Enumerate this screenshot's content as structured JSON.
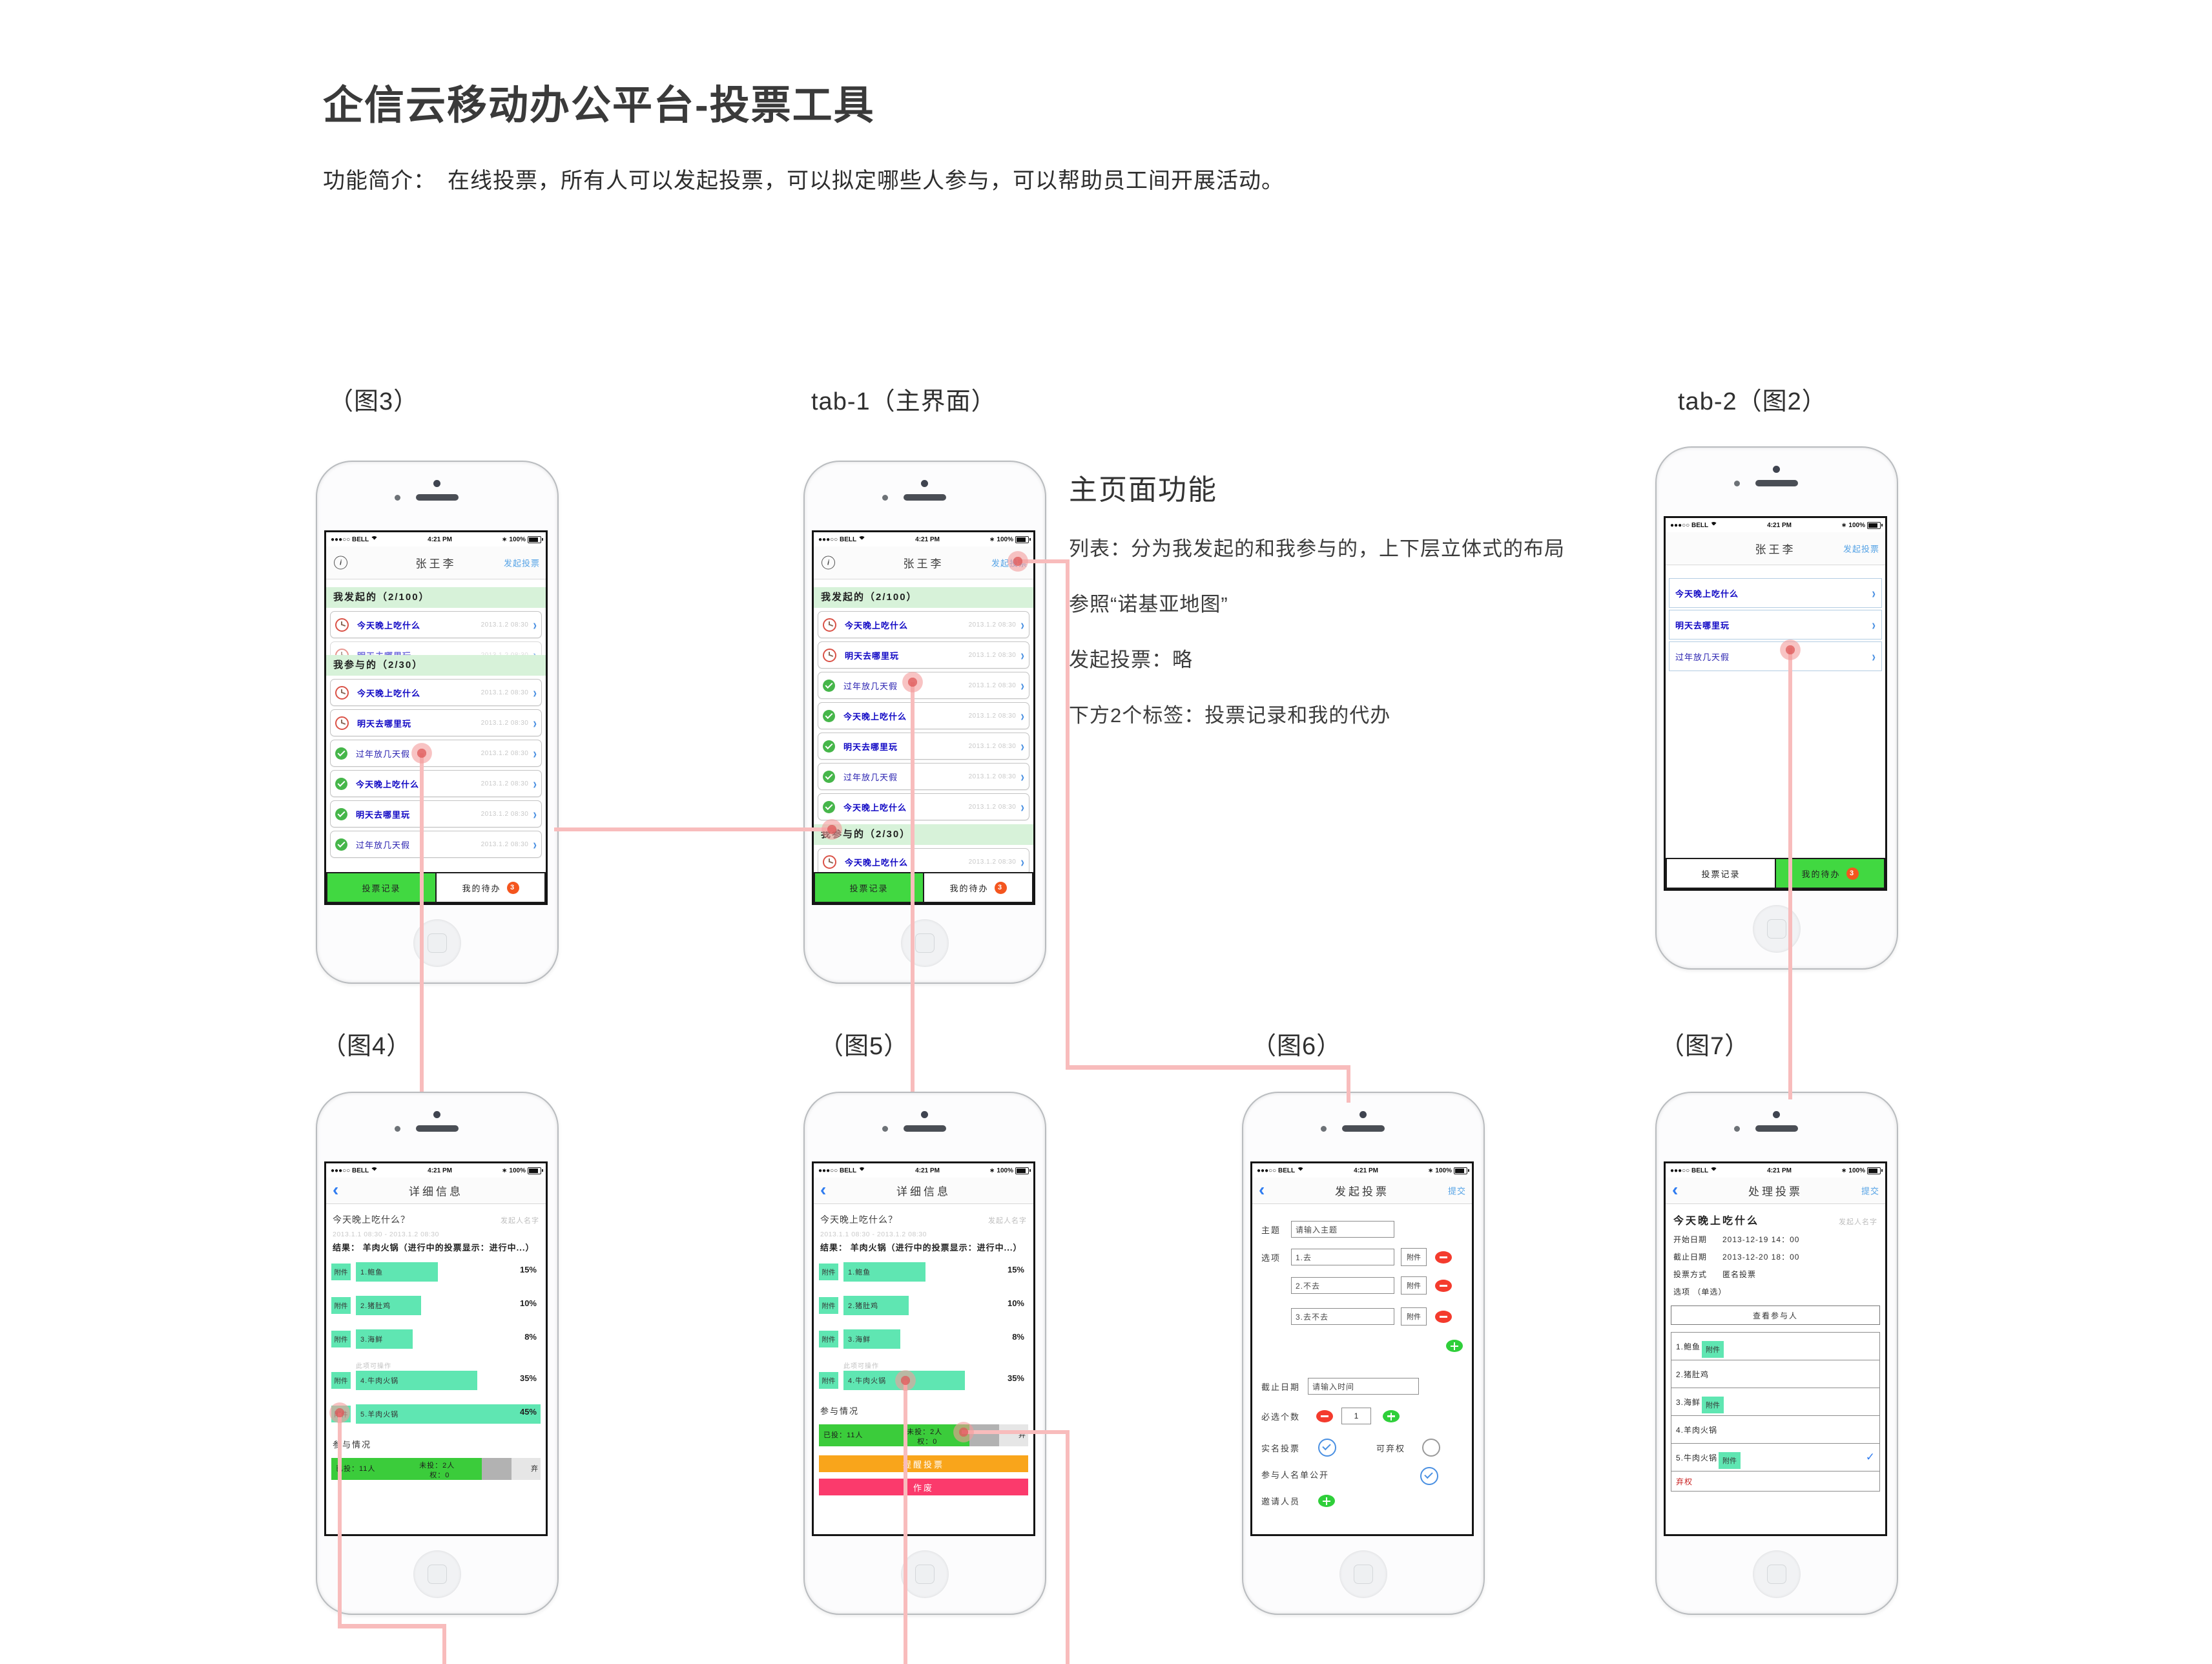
{
  "page": {
    "title": "企信云移动办公平台-投票工具",
    "subtitle": "功能简介：　在线投票，所有人可以发起投票，可以拟定哪些人参与，可以帮助员工间开展活动。"
  },
  "labels": {
    "fig3": "（图3）",
    "tab1": "tab-1（主界面）",
    "tab2": "tab-2（图2）",
    "fig4": "（图4）",
    "fig5": "（图5）",
    "fig6": "（图6）",
    "fig7": "（图7）"
  },
  "notes": {
    "heading": "主页面功能",
    "line1": "列表：分为我发起的和我参与的，上下层立体式的布局",
    "line2": "参照“诺基亚地图”",
    "line3": "发起投票：略",
    "line4": "下方2个标签：投票记录和我的代办"
  },
  "status": {
    "carrier": "●●●○○ BELL",
    "time": "4:21 PM",
    "bluetooth": "∗",
    "battery": "100%"
  },
  "icons": {
    "chevron": "›",
    "back": "‹",
    "info": "i",
    "check": "✓"
  },
  "tabs": {
    "record": "投票记录",
    "todo": "我的待办",
    "badge": "3"
  },
  "common": {
    "user": "张王李",
    "launch": "发起投票",
    "submit": "提交",
    "detail_title": "详细信息",
    "owner": "发起人名字",
    "attach": "附件",
    "participation": "参与情况",
    "hint": "此项可操作"
  },
  "sections": {
    "sent": "我发起的（2/100）",
    "joined": "我参与的（2/30）"
  },
  "phone1": {
    "sent": [
      {
        "icon": "clock",
        "title": "今天晚上吃什么",
        "date": "2013.1.2 08:30",
        "bold": true
      }
    ],
    "sent_clipped": [
      {
        "icon": "clock",
        "title": "明天去哪里玩",
        "date": "2013.1.2 08:30",
        "bold": true
      }
    ],
    "joined": [
      {
        "icon": "clock",
        "title": "今天晚上吃什么",
        "date": "2013.1.2 08:30",
        "bold": true
      },
      {
        "icon": "clock",
        "title": "明天去哪里玩",
        "date": "2013.1.2 08:30",
        "bold": true
      },
      {
        "icon": "check",
        "title": "过年放几天假",
        "date": "2013.1.2 08:30",
        "bold": false
      },
      {
        "icon": "check",
        "title": "今天晚上吃什么",
        "date": "2013.1.2 08:30",
        "bold": true
      },
      {
        "icon": "check",
        "title": "明天去哪里玩",
        "date": "2013.1.2 08:30",
        "bold": true
      },
      {
        "icon": "check",
        "title": "过年放几天假",
        "date": "2013.1.2 08:30",
        "bold": false
      }
    ]
  },
  "phone2": {
    "sent": [
      {
        "icon": "clock",
        "title": "今天晚上吃什么",
        "date": "2013.1.2 08:30",
        "bold": true
      },
      {
        "icon": "clock",
        "title": "明天去哪里玩",
        "date": "2013.1.2 08:30",
        "bold": true
      },
      {
        "icon": "check",
        "title": "过年放几天假",
        "date": "2013.1.2 08:30",
        "bold": false
      },
      {
        "icon": "check",
        "title": "今天晚上吃什么",
        "date": "2013.1.2 08:30",
        "bold": true
      },
      {
        "icon": "check",
        "title": "明天去哪里玩",
        "date": "2013.1.2 08:30",
        "bold": true
      },
      {
        "icon": "check",
        "title": "过年放几天假",
        "date": "2013.1.2 08:30",
        "bold": false
      },
      {
        "icon": "check",
        "title": "今天晚上吃什么",
        "date": "2013.1.2 08:30",
        "bold": true
      }
    ],
    "joined_clipped": [
      {
        "icon": "clock",
        "title": "今天晚上吃什么",
        "date": "2013.1.2 08:30",
        "bold": true
      }
    ]
  },
  "phone3": {
    "rows": [
      {
        "title": "今天晚上吃什么",
        "bold": true
      },
      {
        "title": "明天去哪里玩",
        "bold": true
      },
      {
        "title": "过年放几天假",
        "bold": false
      }
    ]
  },
  "phone4": {
    "title": "今天晚上吃什么？",
    "daterange": "2013.1.1 08:30 - 2013.1.2 08:30",
    "result": "结果： 羊肉火锅（进行中的投票显示：进行中...）",
    "options": [
      {
        "name": "1.鲍鱼",
        "pct": "15%",
        "w": 37
      },
      {
        "name": "2.猪肚鸡",
        "pct": "10%",
        "w": 29
      },
      {
        "name": "3.海鲜",
        "pct": "8%",
        "w": 25
      },
      {
        "name": "4.牛肉火锅",
        "pct": "35%",
        "w": 56
      },
      {
        "name": "5.羊肉火锅",
        "pct": "45%",
        "w": 88
      }
    ],
    "bar": {
      "voted": "已投：11人",
      "unvoted": "未投：2人",
      "abstain_wrap": "权：0",
      "abstain_head": "弃"
    }
  },
  "phone5": {
    "title": "今天晚上吃什么？",
    "daterange": "2013.1.1 08:30 - 2013.1.2 08:30",
    "result": "结果： 羊肉火锅（进行中的投票显示：进行中...）",
    "options": [
      {
        "name": "1.鲍鱼",
        "pct": "15%",
        "w": 37
      },
      {
        "name": "2.猪肚鸡",
        "pct": "10%",
        "w": 29
      },
      {
        "name": "3.海鲜",
        "pct": "8%",
        "w": 25
      },
      {
        "name": "4.牛肉火锅",
        "pct": "35%",
        "w": 56
      }
    ],
    "bar": {
      "voted": "已投：11人",
      "unvoted": "未投：2人",
      "abstain_wrap": "权：0",
      "abstain_head": "弃"
    },
    "buttons": {
      "remind": "提醒投票",
      "void": "作废"
    }
  },
  "phone6": {
    "nav": "发起投票",
    "topic_label": "主题",
    "topic_placeholder": "请输入主题",
    "option_label": "选项",
    "options": [
      "1.去",
      "2.不去",
      "3.去不去"
    ],
    "deadline_label": "截止日期",
    "deadline_placeholder": "请输入时间",
    "minsel_label": "必选个数",
    "minsel_value": "1",
    "realname_label": "实名投票",
    "abstain_label": "可弃权",
    "roster_label": "参与人名单公开",
    "invite_label": "邀请人员"
  },
  "phone7": {
    "nav": "处理投票",
    "title": "今天晚上吃什么",
    "start_label": "开始日期",
    "start": "2013-12-19 14：00",
    "end_label": "截止日期",
    "end": "2013-12-20 18：00",
    "mode_label": "投票方式",
    "mode": "匿名投票",
    "opt_label": "选项 （单选）",
    "viewers": "查看参与人",
    "options": [
      {
        "name": "1.鲍鱼",
        "attach": true
      },
      {
        "name": "2.猪肚鸡"
      },
      {
        "name": "3.海鲜",
        "attach": true
      },
      {
        "name": "4.羊肉火锅"
      },
      {
        "name": "5.牛肉火锅",
        "attach": true,
        "checked": true
      }
    ],
    "abstain": "弃权"
  },
  "colors": {
    "section_green": "#d7f2d9",
    "mint": "#5fe6b2",
    "tab_green": "#41d841",
    "bar_green": "#3bcc3b",
    "badge_orange": "#f4551e",
    "button_orange": "#f9a51b",
    "button_pink": "#fb3a6c",
    "link_blue": "#56a3e6",
    "item_blue": "#0f06c4",
    "chevron_blue": "#4a90e2",
    "minus_red": "#f43b2d",
    "plus_green": "#2fcf3a",
    "connector_pink": "#f8bcbc",
    "dot_pink": "#e26464",
    "check_green": "#46b64a",
    "clock_red": "#da5247",
    "abstain_red": "#c92222"
  }
}
